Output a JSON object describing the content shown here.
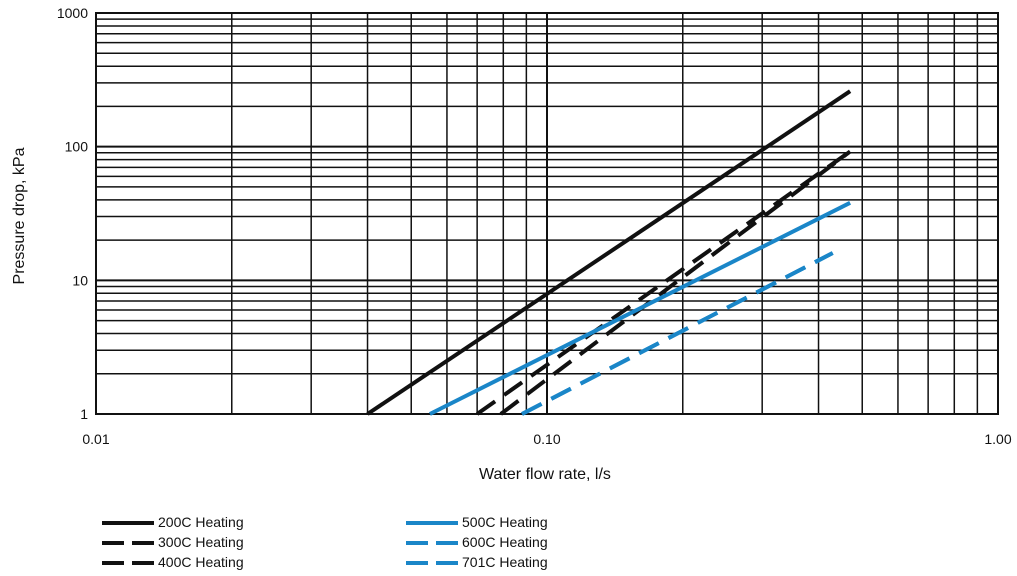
{
  "chart_data": {
    "type": "line",
    "xlabel": "Water flow rate, l/s",
    "ylabel": "Pressure drop, kPa",
    "x_scale": "log",
    "y_scale": "log",
    "xlim": [
      0.01,
      1.0
    ],
    "ylim": [
      1,
      1000
    ],
    "grid": true,
    "x_tick_labels": [
      "0.01",
      "0.10",
      "1.00"
    ],
    "x_tick_values": [
      0.01,
      0.1,
      1.0
    ],
    "y_tick_labels": [
      "1",
      "10",
      "100",
      "1000"
    ],
    "y_tick_values": [
      1,
      10,
      100,
      1000
    ],
    "legend_position": "bottom",
    "series": [
      {
        "name": "200C Heating",
        "color": "#111111",
        "dashed": false,
        "x": [
          0.04,
          0.47
        ],
        "y": [
          1,
          260
        ]
      },
      {
        "name": "300C Heating",
        "color": "#111111",
        "dashed": true,
        "x": [
          0.07,
          0.47
        ],
        "y": [
          1,
          92
        ]
      },
      {
        "name": "400C Heating",
        "color": "#111111",
        "dashed": true,
        "x": [
          0.079,
          0.47
        ],
        "y": [
          1,
          92
        ]
      },
      {
        "name": "500C Heating",
        "color": "#1a86c8",
        "dashed": false,
        "x": [
          0.055,
          0.47
        ],
        "y": [
          1,
          38
        ]
      },
      {
        "name": "600C Heating",
        "color": "#1a86c8",
        "dashed": true,
        "x": [
          0.088,
          0.43
        ],
        "y": [
          1,
          16
        ]
      },
      {
        "name": "701C Heating",
        "color": "#1a86c8",
        "dashed": true,
        "x": [
          0.088,
          0.43
        ],
        "y": [
          1,
          16
        ]
      }
    ]
  }
}
